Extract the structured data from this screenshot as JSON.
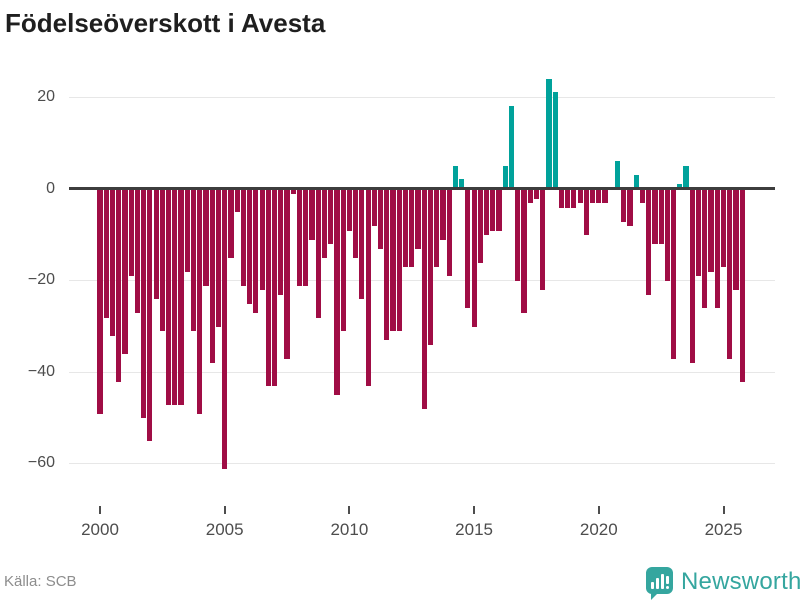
{
  "title": "Födelseöverskott i Avesta",
  "source": {
    "label": "Källa: SCB"
  },
  "branding": {
    "name": "Newsworthy",
    "icon": "bar-chart-speech-bubble-icon"
  },
  "colors": {
    "negative_bar": "#a00d45",
    "positive_bar": "#00a29b",
    "logo": "#35a69f",
    "grid": "#e7e7e7",
    "zero_line": "#3d3d3d",
    "axis_text": "#4d4d4d",
    "title_text": "#1f1f1f",
    "source_text": "#8d8d8d"
  },
  "chart_data": {
    "type": "bar",
    "title": "Födelseöverskott i Avesta",
    "source": "SCB",
    "frequency": "quarterly",
    "start": "2000-Q1",
    "end": "2025-Q4",
    "xlabel": "",
    "ylabel": "",
    "ylim": [
      -65,
      27
    ],
    "grid": true,
    "legend": false,
    "y_ticks": [
      20,
      0,
      -20,
      -40,
      -60
    ],
    "y_tick_labels": [
      "20",
      "0",
      "−20",
      "−40",
      "−60"
    ],
    "x_tick_years": [
      2000,
      2005,
      2010,
      2015,
      2020,
      2025
    ],
    "x_tick_labels": [
      "2000",
      "2005",
      "2010",
      "2015",
      "2020",
      "2025"
    ],
    "values": [
      -49,
      -28,
      -32,
      -42,
      -36,
      -19,
      -27,
      -50,
      -55,
      -24,
      -31,
      -47,
      -47,
      -47,
      -18,
      -31,
      -49,
      -21,
      -38,
      -30,
      -61,
      -15,
      -5,
      -21,
      -25,
      -27,
      -22,
      -43,
      -43,
      -23,
      -37,
      -1,
      -21,
      -21,
      -11,
      -28,
      -15,
      -12,
      -45,
      -31,
      -9,
      -15,
      -24,
      -43,
      -8,
      -13,
      -33,
      -31,
      -31,
      -17,
      -17,
      -13,
      -48,
      -34,
      -17,
      -11,
      -19,
      5,
      2,
      -26,
      -30,
      -16,
      -10,
      -9,
      -9,
      5,
      18,
      -20,
      -27,
      -3,
      -2,
      -22,
      24,
      21,
      -4,
      -4,
      -4,
      -3,
      -10,
      -3,
      -3,
      -3,
      0,
      6,
      -7,
      -8,
      3,
      -3,
      -23,
      -12,
      -12,
      -20,
      -37,
      1,
      5,
      -38,
      -19,
      -26,
      -18,
      -26,
      -17,
      -37,
      -22,
      -42
    ]
  }
}
